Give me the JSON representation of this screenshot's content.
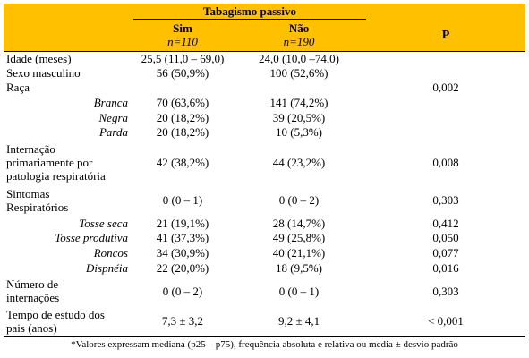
{
  "header": {
    "group_title": "Tabagismo passivo",
    "col_sim": "Sim",
    "col_sim_n": "n=110",
    "col_nao": "Não",
    "col_nao_n": "n=190",
    "col_p": "P"
  },
  "rows": [
    {
      "label": "Idade (meses)",
      "sim": "25,5 (11,0 – 69,0)",
      "nao": "24,0 (10,0 –74,0)",
      "p": ""
    },
    {
      "label": "Sexo masculino",
      "sim": "56 (50,9%)",
      "nao": "100 (52,6%)",
      "p": ""
    },
    {
      "label": "Raça",
      "sim": "",
      "nao": "",
      "p": "0,002"
    },
    {
      "label": "Branca",
      "sim": "70 (63,6%)",
      "nao": "141 (74,2%)",
      "p": ""
    },
    {
      "label": "Negra",
      "sim": "20 (18,2%)",
      "nao": "39 (20,5%)",
      "p": ""
    },
    {
      "label": "Parda",
      "sim": "20 (18,2%)",
      "nao": "10 (5,3%)",
      "p": ""
    },
    {
      "label_lines": [
        "Internação",
        "primariamente por",
        "patologia respiratória"
      ],
      "sim": "42 (38,2%)",
      "nao": "44 (23,2%)",
      "p": "0,008"
    },
    {
      "label_lines": [
        "Sintomas",
        "Respiratórios"
      ],
      "sim": "0 (0 – 1)",
      "nao": "0 (0 – 2)",
      "p": "0,303"
    },
    {
      "label": "Tosse seca",
      "sim": "21 (19,1%)",
      "nao": "28 (14,7%)",
      "p": "0,412"
    },
    {
      "label": "Tosse produtiva",
      "sim": "41 (37,3%)",
      "nao": "49 (25,8%)",
      "p": "0,050"
    },
    {
      "label": "Roncos",
      "sim": "34 (30,9%)",
      "nao": "40 (21,1%)",
      "p": "0,077"
    },
    {
      "label": "Dispnéia",
      "sim": "22 (20,0%)",
      "nao": "18 (9,5%)",
      "p": "0,016"
    },
    {
      "label_lines": [
        "Número de",
        "internações"
      ],
      "sim": "0 (0 – 2)",
      "nao": "0 (0 – 1)",
      "p": "0,303"
    },
    {
      "label_lines": [
        "Tempo de estudo dos",
        "pais (anos)"
      ],
      "sim": "7,3 ± 3,2",
      "nao": "9,2 ± 4,1",
      "p": "< 0,001"
    }
  ],
  "footnote": "*Valores expressam mediana (p25 – p75), frequência absoluta e relativa ou media ± desvio padrão"
}
